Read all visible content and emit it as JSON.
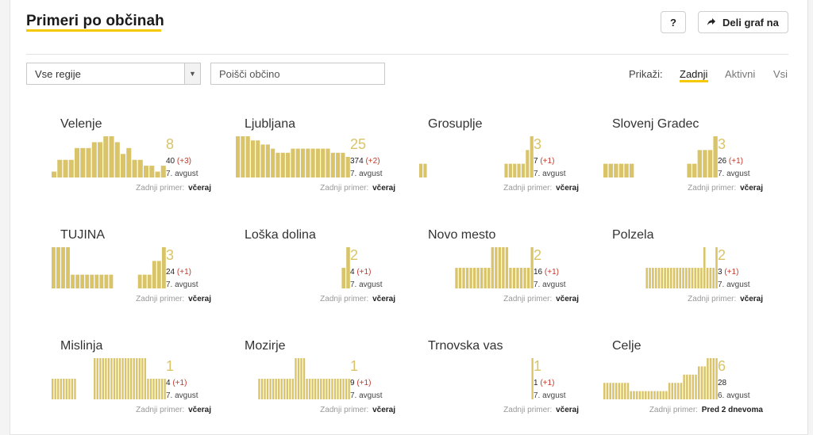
{
  "header": {
    "title": "Primeri po občinah",
    "help_label": "?",
    "share_label": "Deli graf na"
  },
  "filters": {
    "region_value": "Vse regije",
    "search_placeholder": "Poišči občino",
    "show_label": "Prikaži:",
    "options": [
      "Zadnji",
      "Aktivni",
      "Vsi"
    ],
    "active_option": "Zadnji"
  },
  "colors": {
    "bar": "#d9c46a",
    "accent": "#f5c800",
    "delta": "#c0392b"
  },
  "last_case_label": "Zadnji primer:",
  "municipalities": [
    {
      "name": "Velenje",
      "latest": "8",
      "total": "40",
      "delta": "(+3)",
      "date": "7. avgust",
      "last_case": "včeraj",
      "bars": [
        1,
        3,
        3,
        3,
        5,
        5,
        5,
        6,
        6,
        7,
        7,
        6,
        4,
        5,
        3,
        3,
        2,
        2,
        1,
        2
      ]
    },
    {
      "name": "Ljubljana",
      "latest": "25",
      "total": "374",
      "delta": "(+2)",
      "date": "7. avgust",
      "last_case": "včeraj",
      "bars": [
        10,
        10,
        10,
        9,
        9,
        8,
        8,
        7,
        6,
        6,
        6,
        7,
        7,
        7,
        7,
        7,
        7,
        7,
        7,
        6,
        6,
        6,
        5
      ]
    },
    {
      "name": "Grosuplje",
      "latest": "3",
      "total": "7",
      "delta": "(+1)",
      "date": "7. avgust",
      "last_case": "včeraj",
      "bars": [
        1,
        1,
        0,
        0,
        0,
        0,
        0,
        0,
        0,
        0,
        0,
        0,
        0,
        0,
        0,
        0,
        0,
        0,
        0,
        0,
        1,
        1,
        1,
        1,
        1,
        2,
        3
      ]
    },
    {
      "name": "Slovenj Gradec",
      "latest": "3",
      "total": "26",
      "delta": "(+1)",
      "date": "7. avgust",
      "last_case": "včeraj",
      "bars": [
        1,
        1,
        1,
        1,
        1,
        1,
        0,
        0,
        0,
        0,
        0,
        0,
        0,
        0,
        0,
        0,
        1,
        1,
        2,
        2,
        2,
        3
      ]
    },
    {
      "name": "TUJINA",
      "latest": "3",
      "total": "24",
      "delta": "(+1)",
      "date": "7. avgust",
      "last_case": "včeraj",
      "bars": [
        3,
        3,
        3,
        3,
        1,
        1,
        1,
        1,
        1,
        1,
        1,
        1,
        1,
        0,
        0,
        0,
        0,
        0,
        1,
        1,
        1,
        2,
        2,
        3
      ]
    },
    {
      "name": "Loška dolina",
      "latest": "2",
      "total": "4",
      "delta": "(+1)",
      "date": "7. avgust",
      "last_case": "včeraj",
      "bars": [
        0,
        0,
        0,
        0,
        0,
        0,
        0,
        0,
        0,
        0,
        0,
        0,
        0,
        0,
        0,
        0,
        0,
        0,
        0,
        0,
        0,
        0,
        0,
        1,
        2
      ]
    },
    {
      "name": "Novo mesto",
      "latest": "2",
      "total": "16",
      "delta": "(+1)",
      "date": "7. avgust",
      "last_case": "včeraj",
      "bars": [
        0,
        0,
        0,
        0,
        0,
        0,
        0,
        0,
        0,
        0,
        1,
        1,
        1,
        1,
        1,
        1,
        1,
        1,
        1,
        1,
        2,
        2,
        2,
        2,
        2,
        1,
        1,
        1,
        1,
        1,
        1,
        2
      ]
    },
    {
      "name": "Polzela",
      "latest": "2",
      "total": "3",
      "delta": "(+1)",
      "date": "7. avgust",
      "last_case": "včeraj",
      "bars": [
        0,
        0,
        0,
        0,
        0,
        0,
        0,
        0,
        0,
        0,
        0,
        0,
        0,
        0,
        1,
        1,
        1,
        1,
        1,
        1,
        1,
        1,
        1,
        1,
        1,
        1,
        1,
        1,
        1,
        1,
        1,
        1,
        1,
        2,
        1,
        1,
        1,
        2
      ]
    },
    {
      "name": "Mislinja",
      "latest": "1",
      "total": "4",
      "delta": "(+1)",
      "date": "7. avgust",
      "last_case": "včeraj",
      "bars": [
        1,
        1,
        1,
        1,
        1,
        1,
        1,
        1,
        1,
        0,
        0,
        0,
        0,
        0,
        0,
        2,
        2,
        2,
        2,
        2,
        2,
        2,
        2,
        2,
        2,
        2,
        2,
        2,
        2,
        2,
        2,
        2,
        2,
        2,
        1,
        1,
        1,
        1,
        1,
        1,
        1
      ]
    },
    {
      "name": "Mozirje",
      "latest": "1",
      "total": "9",
      "delta": "(+1)",
      "date": "7. avgust",
      "last_case": "včeraj",
      "bars": [
        0,
        0,
        0,
        0,
        0,
        0,
        0,
        0,
        1,
        1,
        1,
        1,
        1,
        1,
        1,
        1,
        1,
        1,
        1,
        1,
        1,
        2,
        2,
        2,
        2,
        1,
        1,
        1,
        1,
        1,
        1,
        1,
        1,
        1,
        1,
        1,
        1,
        1,
        1,
        1,
        1
      ]
    },
    {
      "name": "Trnovska vas",
      "latest": "1",
      "total": "1",
      "delta": "(+1)",
      "date": "7. avgust",
      "last_case": "včeraj",
      "bars": [
        0,
        0,
        0,
        0,
        0,
        0,
        0,
        0,
        0,
        0,
        0,
        0,
        0,
        0,
        0,
        0,
        0,
        0,
        0,
        0,
        0,
        0,
        0,
        0,
        0,
        0,
        0,
        0,
        0,
        0,
        0,
        0,
        0,
        0,
        0,
        0,
        0,
        0,
        0,
        0,
        1
      ]
    },
    {
      "name": "Celje",
      "latest": "6",
      "total": "28",
      "delta": "",
      "date": "6. avgust",
      "last_case": "Pred 2 dnevoma",
      "bars": [
        2,
        2,
        2,
        2,
        2,
        2,
        2,
        2,
        2,
        1,
        1,
        1,
        1,
        1,
        1,
        1,
        1,
        1,
        1,
        1,
        1,
        1,
        2,
        2,
        2,
        2,
        2,
        3,
        3,
        3,
        3,
        3,
        4,
        4,
        4,
        5,
        5,
        5,
        5
      ]
    }
  ]
}
